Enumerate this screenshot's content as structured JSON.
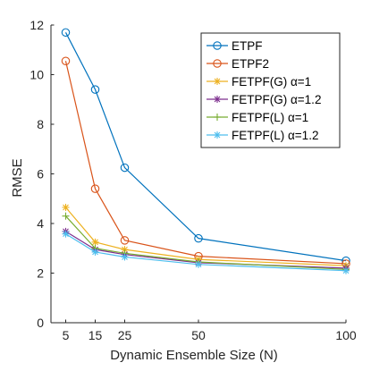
{
  "chart_data": {
    "type": "line",
    "xlabel": "Dynamic Ensemble Size (N)",
    "ylabel": "RMSE",
    "x": [
      5,
      15,
      25,
      50,
      100
    ],
    "xticks": [
      5,
      15,
      25,
      50,
      100
    ],
    "yticks": [
      0,
      2,
      4,
      6,
      8,
      10,
      12
    ],
    "xlim": [
      0,
      100
    ],
    "ylim": [
      0,
      12
    ],
    "grid": false,
    "legend_position": "top-right",
    "series": [
      {
        "name": "ETPF",
        "values": [
          11.7,
          9.4,
          6.25,
          3.4,
          2.5
        ],
        "color": "#0072BD",
        "marker": "circle"
      },
      {
        "name": "ETPF2",
        "values": [
          10.55,
          5.4,
          3.32,
          2.68,
          2.38
        ],
        "color": "#D95319",
        "marker": "circle"
      },
      {
        "name": "FETPF(G) α=1",
        "values": [
          4.65,
          3.25,
          2.95,
          2.55,
          2.3
        ],
        "color": "#EDB120",
        "marker": "asterisk"
      },
      {
        "name": "FETPF(G) α=1.2",
        "values": [
          3.68,
          2.95,
          2.75,
          2.42,
          2.2
        ],
        "color": "#7E2F8E",
        "marker": "asterisk"
      },
      {
        "name": "FETPF(L) α=1",
        "values": [
          4.3,
          3.0,
          2.8,
          2.45,
          2.15
        ],
        "color": "#77AC30",
        "marker": "plus"
      },
      {
        "name": "FETPF(L) α=1.2",
        "values": [
          3.58,
          2.85,
          2.65,
          2.35,
          2.1
        ],
        "color": "#4DBEEE",
        "marker": "asterisk"
      }
    ]
  }
}
